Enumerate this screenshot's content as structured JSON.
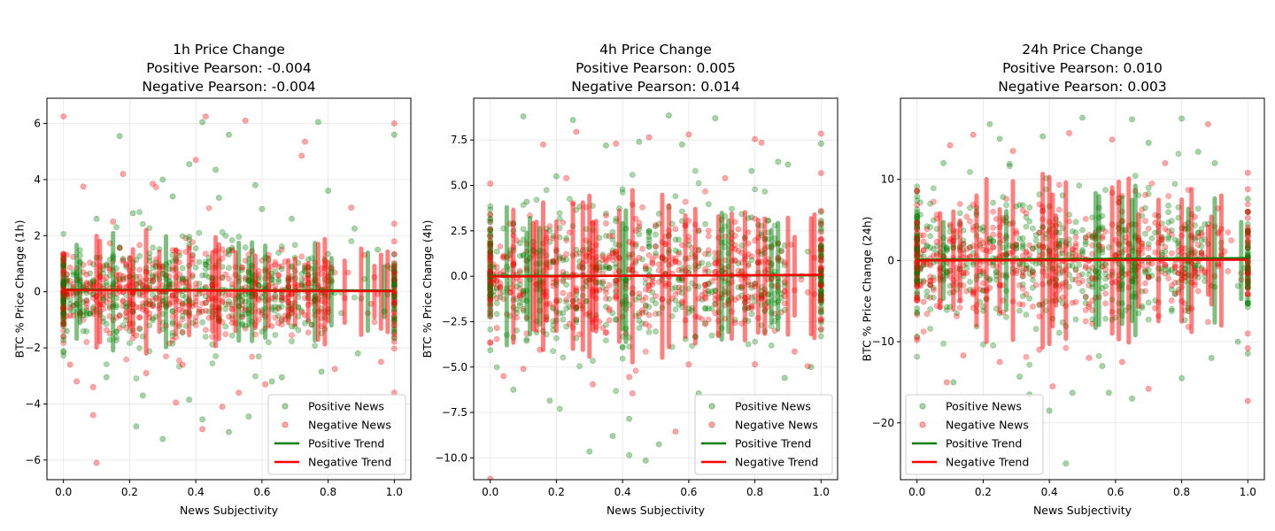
{
  "chart_data": [
    {
      "type": "scatter",
      "title_lines": [
        "1h Price Change",
        "Positive Pearson: -0.004",
        "Negative Pearson: -0.004"
      ],
      "xlabel": "News Subjectivity",
      "ylabel": "BTC % Price Change (1h)",
      "xlim": [
        -0.05,
        1.05
      ],
      "ylim": [
        -6.7,
        6.9
      ],
      "xticks": [
        0.0,
        0.2,
        0.4,
        0.6,
        0.8,
        1.0
      ],
      "yticks": [
        -6,
        -4,
        -2,
        0,
        2,
        4,
        6
      ],
      "xtick_labels": [
        "0.0",
        "0.2",
        "0.4",
        "0.6",
        "0.8",
        "1.0"
      ],
      "ytick_labels": [
        "−6",
        "−4",
        "−2",
        "0",
        "2",
        "4",
        "6"
      ],
      "grid": true,
      "legend_position": "lower-right",
      "legend": [
        "Positive News",
        "Negative News",
        "Positive Trend",
        "Negative Trend"
      ],
      "series": [
        {
          "name": "Positive News",
          "kind": "points",
          "color": "#008000",
          "points": [
            [
              0.17,
              5.55
            ],
            [
              0.42,
              6.05
            ],
            [
              0.77,
              6.05
            ],
            [
              0.5,
              5.6
            ],
            [
              0.38,
              4.55
            ],
            [
              0.46,
              4.35
            ],
            [
              0.3,
              4.0
            ],
            [
              0.58,
              3.8
            ],
            [
              0.8,
              3.6
            ],
            [
              1.0,
              5.6
            ],
            [
              0.21,
              2.8
            ],
            [
              0.1,
              2.6
            ],
            [
              0.6,
              2.95
            ],
            [
              0.88,
              2.25
            ],
            [
              0.69,
              2.6
            ],
            [
              0.05,
              1.3
            ],
            [
              0.13,
              -3.05
            ],
            [
              0.24,
              -3.7
            ],
            [
              0.38,
              -3.85
            ],
            [
              0.42,
              -4.55
            ],
            [
              0.5,
              -5.0
            ],
            [
              0.56,
              -4.45
            ],
            [
              0.63,
              -3.2
            ],
            [
              0.78,
              -2.85
            ],
            [
              0.89,
              -2.2
            ],
            [
              0.3,
              -5.25
            ],
            [
              0.22,
              -4.8
            ],
            [
              0.01,
              -1.4
            ],
            [
              0.95,
              1.5
            ],
            [
              0.97,
              -0.7
            ],
            [
              0.66,
              -3.05
            ],
            [
              0.47,
              3.35
            ],
            [
              0.33,
              3.4
            ]
          ]
        },
        {
          "name": "Negative News",
          "kind": "points",
          "color": "#ff0000",
          "points": [
            [
              0.0,
              6.25
            ],
            [
              0.43,
              6.25
            ],
            [
              0.55,
              6.1
            ],
            [
              0.1,
              -6.1
            ],
            [
              0.09,
              -4.4
            ],
            [
              0.09,
              -3.4
            ],
            [
              0.72,
              4.85
            ],
            [
              0.73,
              5.35
            ],
            [
              0.4,
              4.7
            ],
            [
              0.27,
              3.85
            ],
            [
              0.18,
              4.2
            ],
            [
              0.06,
              3.75
            ],
            [
              0.34,
              -3.95
            ],
            [
              0.42,
              -4.9
            ],
            [
              0.48,
              -4.1
            ],
            [
              0.61,
              -3.3
            ],
            [
              0.82,
              -2.75
            ],
            [
              0.87,
              3.0
            ],
            [
              1.0,
              6.0
            ],
            [
              1.0,
              -3.6
            ],
            [
              0.96,
              -2.5
            ],
            [
              0.36,
              -2.6
            ],
            [
              0.25,
              -2.9
            ],
            [
              0.15,
              2.5
            ],
            [
              0.53,
              -3.6
            ],
            [
              0.02,
              -2.6
            ],
            [
              0.04,
              -3.2
            ]
          ]
        },
        {
          "name": "Positive Trend",
          "kind": "line",
          "color": "#008000",
          "points": [
            [
              0.0,
              0.08
            ],
            [
              1.0,
              0.04
            ]
          ]
        },
        {
          "name": "Negative Trend",
          "kind": "line",
          "color": "#ff0000",
          "points": [
            [
              0.0,
              0.06
            ],
            [
              1.0,
              0.02
            ]
          ]
        }
      ],
      "cloud": {
        "x_center": 0.4,
        "x_spread": 0.22,
        "y_sd_pos": 1.05,
        "y_sd_neg": 0.85,
        "y_band": 2.2
      }
    },
    {
      "type": "scatter",
      "title_lines": [
        "4h Price Change",
        "Positive Pearson: 0.005",
        "Negative Pearson: 0.014"
      ],
      "xlabel": "News Subjectivity",
      "ylabel": "BTC % Price Change (4h)",
      "xlim": [
        -0.05,
        1.05
      ],
      "ylim": [
        -11.2,
        9.8
      ],
      "xticks": [
        0.0,
        0.2,
        0.4,
        0.6,
        0.8,
        1.0
      ],
      "yticks": [
        -10.0,
        -7.5,
        -5.0,
        -2.5,
        0.0,
        2.5,
        5.0,
        7.5
      ],
      "xtick_labels": [
        "0.0",
        "0.2",
        "0.4",
        "0.6",
        "0.8",
        "1.0"
      ],
      "ytick_labels": [
        "−10.0",
        "−7.5",
        "−5.0",
        "−2.5",
        "0.0",
        "2.5",
        "5.0",
        "7.5"
      ],
      "grid": true,
      "legend_position": "lower-right",
      "legend": [
        "Positive News",
        "Negative News",
        "Positive Trend",
        "Negative Trend"
      ],
      "series": [
        {
          "name": "Positive News",
          "kind": "points",
          "color": "#008000",
          "points": [
            [
              0.1,
              8.8
            ],
            [
              0.25,
              8.6
            ],
            [
              0.54,
              8.85
            ],
            [
              0.68,
              8.7
            ],
            [
              0.45,
              7.4
            ],
            [
              0.35,
              7.2
            ],
            [
              0.58,
              7.25
            ],
            [
              0.87,
              6.3
            ],
            [
              0.9,
              6.15
            ],
            [
              1.0,
              7.3
            ],
            [
              0.3,
              -9.65
            ],
            [
              0.42,
              -9.85
            ],
            [
              0.47,
              -10.15
            ],
            [
              0.51,
              -9.25
            ],
            [
              0.42,
              -7.85
            ],
            [
              0.63,
              -6.45
            ],
            [
              0.76,
              -6.85
            ],
            [
              0.07,
              -6.25
            ],
            [
              0.18,
              -6.85
            ],
            [
              0.89,
              -5.6
            ],
            [
              0.97,
              -5.0
            ],
            [
              0.37,
              -8.8
            ],
            [
              0.2,
              5.5
            ],
            [
              0.79,
              5.8
            ],
            [
              0.11,
              4.1
            ]
          ]
        },
        {
          "name": "Negative News",
          "kind": "points",
          "color": "#ff0000",
          "points": [
            [
              0.0,
              -11.15
            ],
            [
              0.0,
              5.1
            ],
            [
              0.26,
              7.95
            ],
            [
              0.6,
              7.8
            ],
            [
              0.8,
              7.55
            ],
            [
              0.82,
              7.35
            ],
            [
              0.48,
              7.65
            ],
            [
              0.38,
              7.3
            ],
            [
              0.16,
              7.25
            ],
            [
              1.0,
              7.85
            ],
            [
              0.02,
              -2.85
            ],
            [
              0.04,
              -5.5
            ],
            [
              0.1,
              -5.1
            ],
            [
              0.15,
              -4.05
            ],
            [
              0.31,
              -5.95
            ],
            [
              0.43,
              -6.45
            ],
            [
              0.56,
              -8.55
            ],
            [
              0.42,
              -5.55
            ],
            [
              0.6,
              -4.85
            ],
            [
              0.8,
              -4.85
            ],
            [
              0.96,
              -4.95
            ],
            [
              1.0,
              3.6
            ],
            [
              0.92,
              -4.15
            ],
            [
              0.23,
              5.4
            ],
            [
              0.71,
              5.4
            ]
          ]
        },
        {
          "name": "Positive Trend",
          "kind": "line",
          "color": "#008000",
          "points": [
            [
              0.0,
              0.02
            ],
            [
              1.0,
              0.05
            ]
          ]
        },
        {
          "name": "Negative Trend",
          "kind": "line",
          "color": "#ff0000",
          "points": [
            [
              0.0,
              -0.02
            ],
            [
              1.0,
              0.08
            ]
          ]
        }
      ],
      "cloud": {
        "x_center": 0.42,
        "x_spread": 0.25,
        "y_sd_pos": 2.3,
        "y_sd_neg": 1.8,
        "y_band": 4.4
      }
    },
    {
      "type": "scatter",
      "title_lines": [
        "24h Price Change",
        "Positive Pearson: 0.010",
        "Negative Pearson: 0.003"
      ],
      "xlabel": "News Subjectivity",
      "ylabel": "BTC % Price Change (24h)",
      "xlim": [
        -0.05,
        1.05
      ],
      "ylim": [
        -27,
        20
      ],
      "xticks": [
        0.0,
        0.2,
        0.4,
        0.6,
        0.8,
        1.0
      ],
      "yticks": [
        -20,
        -10,
        0,
        10
      ],
      "xtick_labels": [
        "0.0",
        "0.2",
        "0.4",
        "0.6",
        "0.8",
        "1.0"
      ],
      "ytick_labels": [
        "−20",
        "−10",
        "0",
        "10"
      ],
      "grid": true,
      "legend_position": "lower-left",
      "legend": [
        "Positive News",
        "Negative News",
        "Positive Trend",
        "Negative Trend"
      ],
      "series": [
        {
          "name": "Positive News",
          "kind": "points",
          "color": "#008000",
          "points": [
            [
              0.22,
              16.8
            ],
            [
              0.38,
              15.3
            ],
            [
              0.5,
              17.6
            ],
            [
              0.65,
              17.4
            ],
            [
              0.8,
              17.5
            ],
            [
              0.7,
              14.5
            ],
            [
              0.85,
              13.4
            ],
            [
              0.9,
              12.0
            ],
            [
              0.08,
              12.0
            ],
            [
              0.45,
              -25.0
            ],
            [
              0.4,
              -18.5
            ],
            [
              0.34,
              -16.5
            ],
            [
              0.47,
              -16.3
            ],
            [
              0.58,
              -16.3
            ],
            [
              0.65,
              -17.0
            ],
            [
              0.56,
              -13.0
            ],
            [
              0.8,
              -14.5
            ],
            [
              0.11,
              -15.0
            ],
            [
              0.97,
              -10.0
            ],
            [
              0.89,
              -12.0
            ],
            [
              0.31,
              -14.3
            ],
            [
              0.25,
              15.0
            ]
          ]
        },
        {
          "name": "Negative News",
          "kind": "points",
          "color": "#ff0000",
          "points": [
            [
              0.0,
              8.6
            ],
            [
              0.0,
              -9.5
            ],
            [
              0.17,
              15.5
            ],
            [
              0.46,
              15.7
            ],
            [
              0.88,
              16.8
            ],
            [
              0.59,
              14.9
            ],
            [
              0.29,
              13.5
            ],
            [
              0.1,
              14.2
            ],
            [
              0.41,
              -15.5
            ],
            [
              0.7,
              -15.8
            ],
            [
              0.25,
              -12.5
            ],
            [
              0.14,
              -11.7
            ],
            [
              0.09,
              -15.0
            ],
            [
              0.52,
              -12.0
            ],
            [
              1.0,
              -17.3
            ],
            [
              1.0,
              -10.8
            ],
            [
              1.0,
              10.8
            ],
            [
              0.37,
              -11.0
            ],
            [
              0.62,
              -12.5
            ],
            [
              0.75,
              12.0
            ]
          ]
        },
        {
          "name": "Positive Trend",
          "kind": "line",
          "color": "#008000",
          "points": [
            [
              0.0,
              0.1
            ],
            [
              1.0,
              0.3
            ]
          ]
        },
        {
          "name": "Negative Trend",
          "kind": "line",
          "color": "#ff0000",
          "points": [
            [
              0.0,
              0.0
            ],
            [
              1.0,
              0.1
            ]
          ]
        }
      ],
      "cloud": {
        "x_center": 0.42,
        "x_spread": 0.24,
        "y_sd_pos": 5.2,
        "y_sd_neg": 4.2,
        "y_band": 10
      }
    }
  ]
}
